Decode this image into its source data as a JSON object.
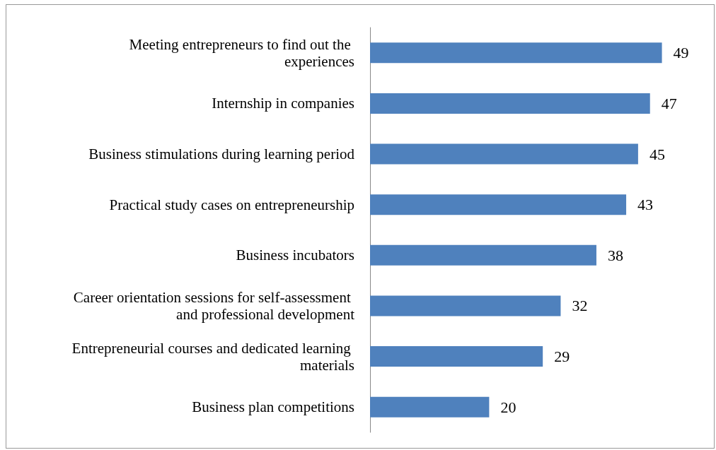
{
  "chart_data": {
    "type": "bar",
    "orientation": "horizontal",
    "categories": [
      "Meeting entrepreneurs to find out the experiences",
      "Internship in companies",
      "Business stimulations during learning period",
      "Practical study cases on entrepreneurship",
      "Business incubators",
      "Career orientation sessions for self-assessment and professional development",
      "Entrepreneurial courses and dedicated learning materials",
      "Business plan competitions"
    ],
    "values": [
      49,
      47,
      45,
      43,
      38,
      32,
      29,
      20
    ],
    "color": "#4f81bd",
    "data_labels": true
  }
}
